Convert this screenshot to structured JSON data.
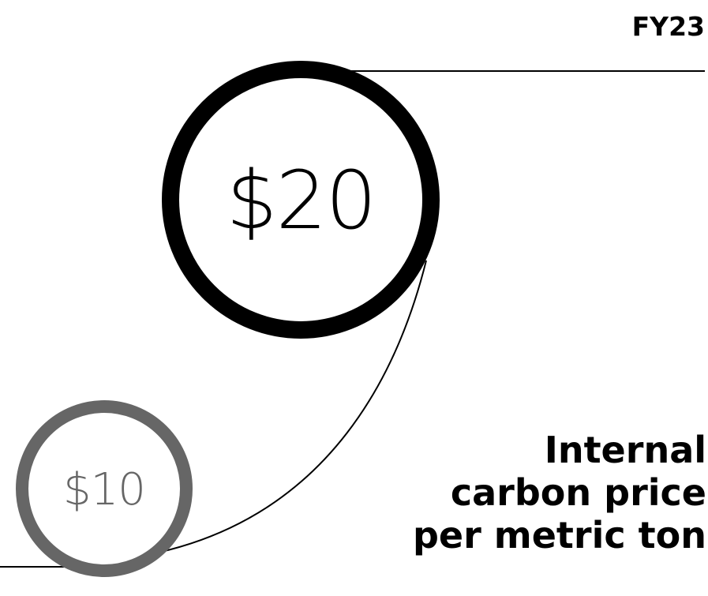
{
  "fiscal_year": "FY23",
  "current_price": {
    "label": "$20",
    "amount": 20
  },
  "previous_price": {
    "label": "$10",
    "amount": 10
  },
  "caption": {
    "line1": "Internal",
    "line2": "carbon price",
    "line3": "per metric ton"
  },
  "colors": {
    "current": "#000000",
    "previous": "#666666",
    "background": "#ffffff"
  }
}
